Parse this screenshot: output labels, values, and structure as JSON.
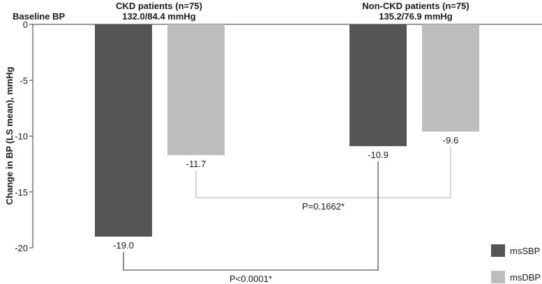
{
  "chart_data": {
    "type": "bar",
    "baseline_label": "Baseline BP",
    "ylabel": "Change in BP (LS mean), mmHg",
    "ylim": [
      -20,
      0
    ],
    "yticks": [
      0,
      -5,
      -10,
      -15,
      -20
    ],
    "grid": false,
    "legend_position": "bottom-right",
    "groups": [
      {
        "title": "CKD patients (n=75)",
        "subtitle": "132.0/84.4 mmHg"
      },
      {
        "title": "Non-CKD patients (n=75)",
        "subtitle": "135.2/76.9 mmHg"
      }
    ],
    "series": [
      {
        "name": "msSBP",
        "color": "#555555",
        "values": [
          -19.0,
          -10.9
        ],
        "labels": [
          "-19.0",
          "-10.9"
        ]
      },
      {
        "name": "msDBP",
        "color": "#bdbdbd",
        "values": [
          -11.7,
          -9.6
        ],
        "labels": [
          "-11.7",
          "-9.6"
        ]
      }
    ],
    "comparisons": [
      {
        "series": "msDBP",
        "text": "P=0.1662*",
        "color": "#bdbdbd"
      },
      {
        "series": "msSBP",
        "text": "P<0.0001*",
        "color": "#555555"
      }
    ]
  }
}
